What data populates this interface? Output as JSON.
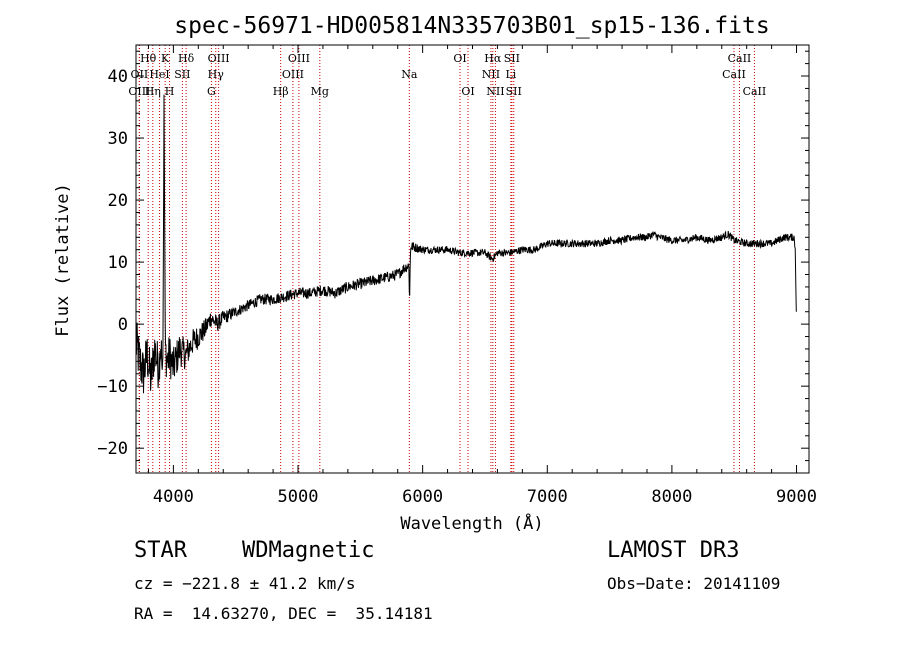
{
  "chart_data": {
    "type": "line",
    "title": "spec-56971-HD005814N335703B01_sp15-136.fits",
    "xlabel": "Wavelength (Å)",
    "ylabel": "Flux (relative)",
    "xlim": [
      3700,
      9100
    ],
    "ylim": [
      -24,
      45
    ],
    "xticks": [
      4000,
      5000,
      6000,
      7000,
      8000,
      9000
    ],
    "yticks": [
      -20,
      -10,
      0,
      10,
      20,
      30,
      40
    ],
    "xtick_labels": [
      "4000",
      "5000",
      "6000",
      "7000",
      "8000",
      "9000"
    ],
    "ytick_labels": [
      "−20",
      "−10",
      "0",
      "10",
      "20",
      "30",
      "40"
    ],
    "grid": false,
    "series": [
      {
        "anchor_x": [
          3700,
          3730,
          3760,
          3790,
          3820,
          3850,
          3880,
          3900,
          3915,
          3925,
          3935,
          3950,
          3970,
          4000,
          4050,
          4100,
          4150,
          4200,
          4250,
          4300,
          4350,
          4400,
          4500,
          4600,
          4700,
          4800,
          4900,
          5000,
          5100,
          5200,
          5300,
          5400,
          5500,
          5600,
          5700,
          5800,
          5850,
          5890,
          5895,
          5900,
          5905,
          5910,
          5920,
          6000,
          6100,
          6200,
          6300,
          6400,
          6500,
          6560,
          6600,
          6700,
          6800,
          6900,
          7000,
          7100,
          7200,
          7300,
          7400,
          7500,
          7600,
          7700,
          7800,
          7850,
          7900,
          8000,
          8100,
          8200,
          8300,
          8400,
          8450,
          8500,
          8600,
          8700,
          8800,
          8900,
          8950,
          8980,
          8990,
          9000
        ],
        "anchor_y": [
          -3,
          -6,
          -8,
          -5,
          -9,
          -4,
          -7,
          -3,
          -10,
          37,
          -4,
          -6,
          -5,
          -7,
          -4,
          -5,
          -3,
          -2,
          -1,
          1,
          0,
          1,
          2,
          3,
          4,
          4,
          4.5,
          5,
          5,
          5.5,
          5,
          6,
          6.5,
          7,
          7.5,
          8,
          9,
          9.5,
          3,
          10,
          12.5,
          12.5,
          12.5,
          12,
          12,
          12,
          11.5,
          11.5,
          11.5,
          10.5,
          11.5,
          11.5,
          12,
          12,
          13,
          13,
          13,
          13,
          13,
          13.5,
          13.5,
          14,
          14,
          14.5,
          14,
          13.5,
          13.5,
          14,
          13.5,
          14,
          14.5,
          13.5,
          13,
          13,
          13,
          14,
          14,
          14,
          12,
          0
        ],
        "noise_amplitude_by_x": [
          [
            3700,
            7
          ],
          [
            3950,
            6
          ],
          [
            4100,
            4
          ],
          [
            4300,
            2.5
          ],
          [
            4500,
            1.5
          ],
          [
            5000,
            1.5
          ],
          [
            5900,
            1.5
          ],
          [
            6000,
            1
          ],
          [
            9000,
            1
          ]
        ],
        "color": "#000000"
      }
    ],
    "spectral_lines": [
      {
        "label": "Hθ",
        "wavelength": 3798,
        "row": 1
      },
      {
        "label": "OII",
        "wavelength": 3727,
        "row": 2
      },
      {
        "label": "OIII",
        "wavelength": 3727,
        "row": 3
      },
      {
        "label": "Hη",
        "wavelength": 3835,
        "row": 3
      },
      {
        "label": "HeI",
        "wavelength": 3889,
        "row": 2
      },
      {
        "label": "K",
        "wavelength": 3934,
        "row": 1
      },
      {
        "label": "H",
        "wavelength": 3969,
        "row": 3
      },
      {
        "label": "SII",
        "wavelength": 4072,
        "row": 2
      },
      {
        "label": "Hδ",
        "wavelength": 4102,
        "row": 1
      },
      {
        "label": "OIII",
        "wavelength": 4363,
        "row": 1
      },
      {
        "label": "Hγ",
        "wavelength": 4340,
        "row": 2
      },
      {
        "label": "G",
        "wavelength": 4305,
        "row": 3
      },
      {
        "label": "Hβ",
        "wavelength": 4861,
        "row": 3
      },
      {
        "label": "OIII",
        "wavelength": 4959,
        "row": 2
      },
      {
        "label": "OIII",
        "wavelength": 5007,
        "row": 1
      },
      {
        "label": "Mg",
        "wavelength": 5175,
        "row": 3
      },
      {
        "label": "Na",
        "wavelength": 5893,
        "row": 2
      },
      {
        "label": "OI",
        "wavelength": 6300,
        "row": 1
      },
      {
        "label": "OI",
        "wavelength": 6364,
        "row": 3
      },
      {
        "label": "Hα",
        "wavelength": 6563,
        "row": 1
      },
      {
        "label": "NII",
        "wavelength": 6548,
        "row": 2
      },
      {
        "label": "NII",
        "wavelength": 6584,
        "row": 3
      },
      {
        "label": "SII",
        "wavelength": 6716,
        "row": 1
      },
      {
        "label": "Li",
        "wavelength": 6708,
        "row": 2
      },
      {
        "label": "SII",
        "wavelength": 6731,
        "row": 3
      },
      {
        "label": "CaII",
        "wavelength": 8542,
        "row": 1
      },
      {
        "label": "CaII",
        "wavelength": 8498,
        "row": 2
      },
      {
        "label": "CaII",
        "wavelength": 8662,
        "row": 3
      }
    ],
    "line_marker_color": "#cc0000"
  },
  "info": {
    "class_label": "STAR",
    "subclass_label": "WDMagnetic",
    "survey_label": "LAMOST DR3",
    "cz_text": "cz = −221.8 ± 41.2 km/s",
    "obs_date_text": "Obs−Date: 20141109",
    "radec_text": "RA =  14.63270, DEC =  35.14181"
  }
}
